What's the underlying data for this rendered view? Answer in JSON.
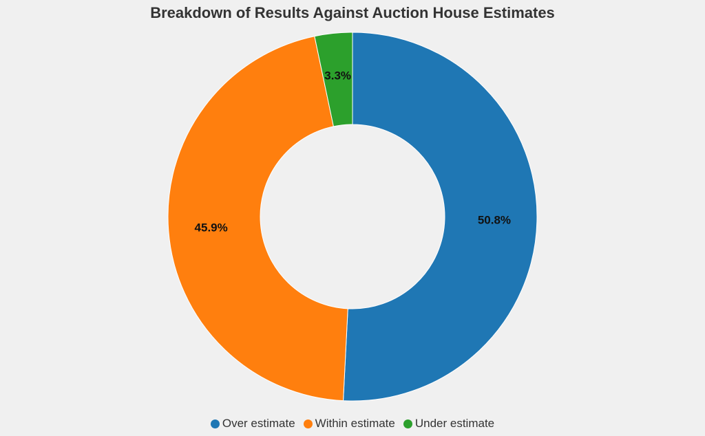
{
  "chart_data": {
    "type": "pie",
    "variant": "donut",
    "title": "Breakdown of Results Against Auction House Estimates",
    "categories": [
      "Over estimate",
      "Within estimate",
      "Under estimate"
    ],
    "values": [
      50.8,
      45.9,
      3.3
    ],
    "value_labels": [
      "50.8%",
      "45.9%",
      "3.3%"
    ],
    "colors": [
      "#1f77b4",
      "#ff7f0e",
      "#2ca02c"
    ],
    "start_angle": "12 o'clock",
    "direction": "clockwise",
    "legend_position": "bottom"
  }
}
